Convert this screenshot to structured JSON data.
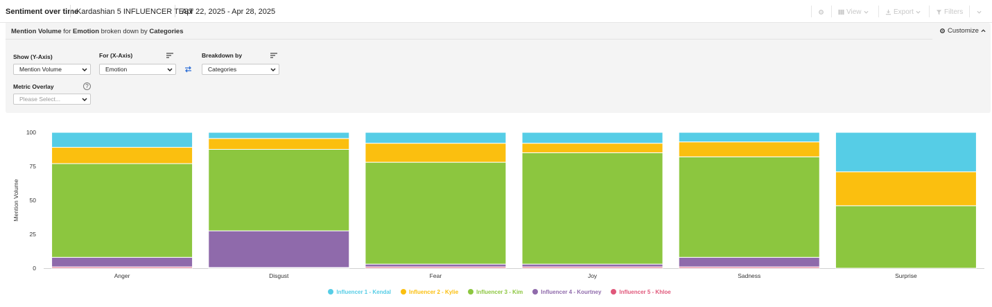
{
  "header": {
    "report_title": "Sentiment over time",
    "project_name": "Kardashian 5 INFLUENCER TEST",
    "date_range": "Apr 22, 2025 - Apr 28, 2025",
    "view_label": "View",
    "export_label": "Export",
    "filters_label": "Filters"
  },
  "panel": {
    "title_metric": "Mention Volume",
    "title_for": "for",
    "title_dimension": "Emotion",
    "title_broken": "broken down by",
    "title_breakdown": "Categories",
    "customize_label": "Customize",
    "y_axis_label": "Show (Y-Axis)",
    "y_axis_value": "Mention Volume",
    "x_axis_label": "For (X-Axis)",
    "x_axis_value": "Emotion",
    "breakdown_label": "Breakdown by",
    "breakdown_value": "Categories",
    "overlay_label": "Metric Overlay",
    "overlay_placeholder": "Please Select..."
  },
  "chart_data": {
    "type": "bar",
    "stacked": true,
    "ylabel": "Mention Volume",
    "ylim": [
      0,
      100
    ],
    "yticks": [
      0,
      25,
      50,
      75,
      100
    ],
    "grid": false,
    "legend_position": "bottom",
    "categories": [
      "Anger",
      "Disgust",
      "Fear",
      "Joy",
      "Sadness",
      "Surprise"
    ],
    "series": [
      {
        "name": "Influencer 5 - Khloe",
        "color": "#e0577a",
        "values": [
          1,
          0.5,
          1,
          1,
          1,
          0
        ]
      },
      {
        "name": "Influencer 4 - Kourtney",
        "color": "#8f6aab",
        "values": [
          7,
          27,
          2,
          2,
          7,
          0
        ]
      },
      {
        "name": "Influencer 3 - Kim",
        "color": "#8cc63f",
        "values": [
          69,
          60,
          75,
          82,
          74,
          46
        ]
      },
      {
        "name": "Influencer 2 - Kylie",
        "color": "#fbbf0f",
        "values": [
          12,
          8,
          14,
          7,
          11,
          25
        ]
      },
      {
        "name": "Influencer 1 - Kendal",
        "color": "#56cde6",
        "values": [
          11,
          4.5,
          8,
          8,
          7,
          29
        ]
      }
    ],
    "legend_order": [
      "Influencer 1 - Kendal",
      "Influencer 2 - Kylie",
      "Influencer 3 - Kim",
      "Influencer 4 - Kourtney",
      "Influencer 5 - Khloe"
    ]
  }
}
